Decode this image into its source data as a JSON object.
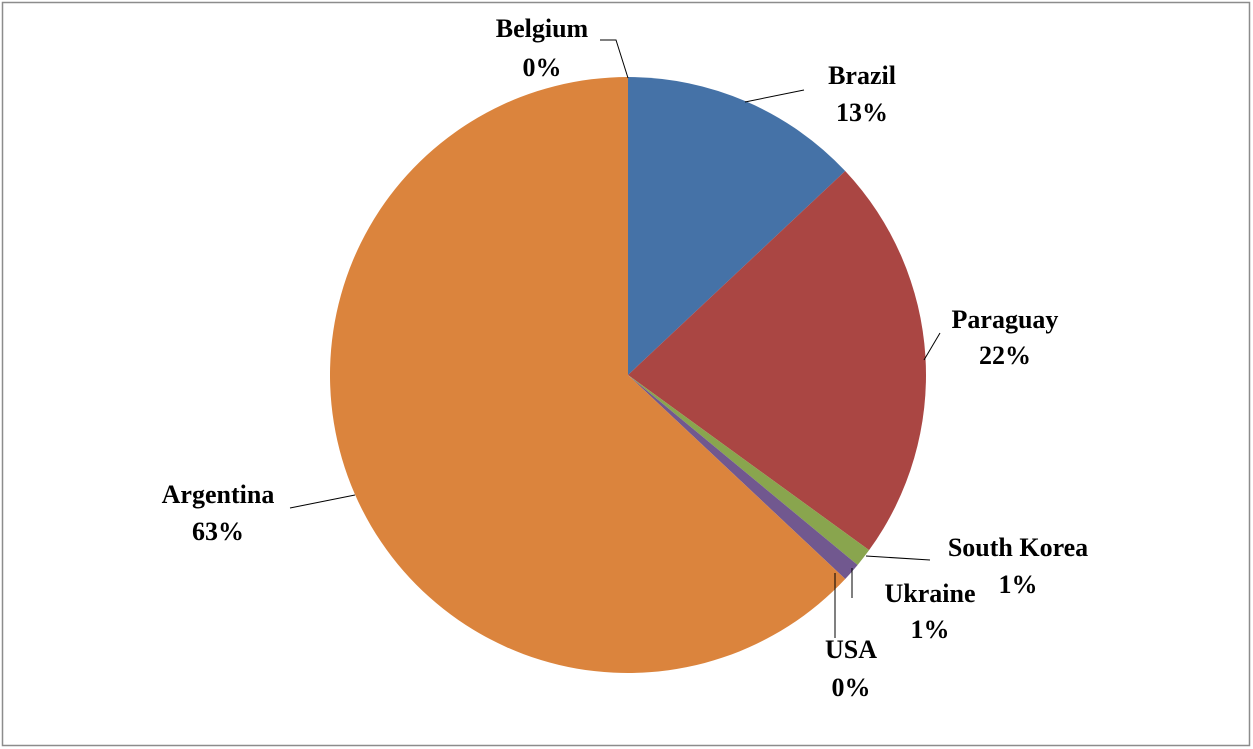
{
  "chart_data": {
    "type": "pie",
    "categories": [
      "Belgium",
      "Brazil",
      "Paraguay",
      "South Korea",
      "Ukraine",
      "USA",
      "Argentina"
    ],
    "values": [
      0,
      13,
      22,
      1,
      1,
      0,
      63
    ],
    "value_labels": [
      "0%",
      "13%",
      "22%",
      "1%",
      "1%",
      "0%",
      "63%"
    ],
    "colors": [
      "#3a6ea5",
      "#4572a7",
      "#aa4643",
      "#89a54e",
      "#71588f",
      "#4198af",
      "#db843d"
    ]
  }
}
